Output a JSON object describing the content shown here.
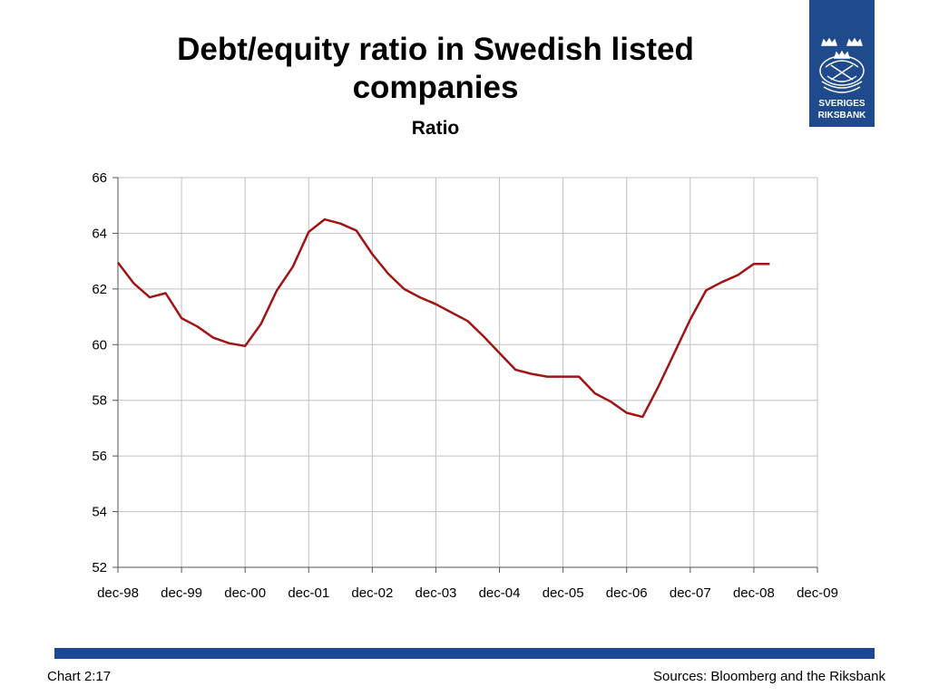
{
  "slide": {
    "title_line1": "Debt/equity ratio in Swedish listed",
    "title_line2": "companies",
    "subtitle": "Ratio",
    "logo_line1": "SVERIGES",
    "logo_line2": "RIKSBANK",
    "chart_number": "Chart 2:17",
    "sources": "Sources: Bloomberg and the Riksbank"
  },
  "colors": {
    "series": "#a01414",
    "logo_bg": "#1f4a8c",
    "footer_bar": "#1a4894",
    "grid": "#c0c0c0"
  },
  "chart_data": {
    "type": "line",
    "title": "Debt/equity ratio in Swedish listed companies",
    "subtitle": "Ratio",
    "xlabel": "",
    "ylabel": "",
    "ylim": [
      52,
      66
    ],
    "yticks": [
      52,
      54,
      56,
      58,
      60,
      62,
      64,
      66
    ],
    "xticks": [
      "dec-98",
      "dec-99",
      "dec-00",
      "dec-01",
      "dec-02",
      "dec-03",
      "dec-04",
      "dec-05",
      "dec-06",
      "dec-07",
      "dec-08",
      "dec-09"
    ],
    "grid": true,
    "legend": "none",
    "series": [
      {
        "x": [
          "dec-98",
          "mar-99",
          "jun-99",
          "sep-99",
          "dec-99",
          "mar-00",
          "jun-00",
          "sep-00",
          "dec-00",
          "mar-01",
          "jun-01",
          "sep-01",
          "dec-01",
          "mar-02",
          "jun-02",
          "sep-02",
          "dec-02",
          "mar-03",
          "jun-03",
          "sep-03",
          "dec-03",
          "mar-04",
          "jun-04",
          "sep-04",
          "dec-04",
          "mar-05",
          "jun-05",
          "sep-05",
          "dec-05",
          "mar-06",
          "jun-06",
          "sep-06",
          "dec-06",
          "mar-07",
          "jun-07",
          "sep-07",
          "dec-07",
          "mar-08",
          "jun-08",
          "sep-08",
          "dec-08",
          "mar-09"
        ],
        "values": [
          62.95,
          62.2,
          61.7,
          61.85,
          60.95,
          60.65,
          60.25,
          60.05,
          59.95,
          60.75,
          61.95,
          62.8,
          64.05,
          64.5,
          64.35,
          64.1,
          63.25,
          62.55,
          62.0,
          61.7,
          61.45,
          61.15,
          60.85,
          60.3,
          59.7,
          59.1,
          58.95,
          58.85,
          58.85,
          58.85,
          58.25,
          57.95,
          57.55,
          57.4,
          58.5,
          59.7,
          60.9,
          61.95,
          62.25,
          62.5,
          62.9,
          62.9
        ]
      }
    ]
  }
}
